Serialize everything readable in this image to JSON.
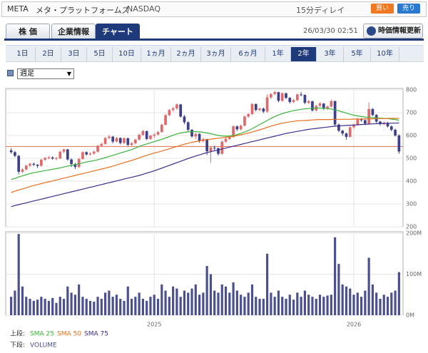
{
  "header": {
    "symbol": "META",
    "name": "メタ・プラットフォームズ",
    "exchange": "NASDAQ",
    "delay": "15分ディレイ",
    "buy": "買い",
    "sell": "売り",
    "timestamp": "26/03/30 02:51",
    "refresh": "時価情報更新"
  },
  "tabs": {
    "items": [
      "株 価",
      "企業情報",
      "チャート"
    ],
    "active": 2
  },
  "periods": {
    "items": [
      "1日",
      "2日",
      "3日",
      "5日",
      "10日",
      "1ヵ月",
      "2ヵ月",
      "3ヵ月",
      "6ヵ月",
      "1年",
      "2年",
      "3年",
      "5年",
      "10年"
    ],
    "active": 10
  },
  "interval": "週足",
  "chart_data": {
    "type": "candlestick",
    "up_color": "#e06a6a",
    "down_color": "#3c3f8a",
    "grid": true,
    "ylim": [
      200,
      800
    ],
    "yticks": [
      200,
      300,
      400,
      500,
      600,
      700,
      800
    ],
    "reference_line": 552,
    "reference_color": "#e07050",
    "xticks": [
      {
        "value": 38,
        "label": "2025"
      },
      {
        "value": 91,
        "label": "2026"
      }
    ],
    "candles": [
      [
        535,
        545,
        520,
        527
      ],
      [
        527,
        532,
        505,
        511
      ],
      [
        511,
        515,
        430,
        441
      ],
      [
        441,
        458,
        435,
        451
      ],
      [
        451,
        472,
        446,
        468
      ],
      [
        468,
        480,
        462,
        476
      ],
      [
        476,
        481,
        466,
        472
      ],
      [
        472,
        475,
        458,
        467
      ],
      [
        467,
        498,
        463,
        494
      ],
      [
        494,
        506,
        488,
        502
      ],
      [
        502,
        510,
        496,
        504
      ],
      [
        504,
        508,
        494,
        499
      ],
      [
        499,
        507,
        491,
        500
      ],
      [
        500,
        533,
        497,
        529
      ],
      [
        529,
        543,
        522,
        539
      ],
      [
        539,
        541,
        490,
        495
      ],
      [
        495,
        500,
        462,
        475
      ],
      [
        475,
        480,
        453,
        462
      ],
      [
        462,
        502,
        458,
        497
      ],
      [
        497,
        531,
        494,
        527
      ],
      [
        527,
        530,
        512,
        517
      ],
      [
        517,
        526,
        512,
        521
      ],
      [
        521,
        534,
        515,
        529
      ],
      [
        529,
        559,
        525,
        555
      ],
      [
        555,
        568,
        550,
        563
      ],
      [
        563,
        593,
        560,
        589
      ],
      [
        589,
        602,
        584,
        595
      ],
      [
        595,
        598,
        566,
        573
      ],
      [
        573,
        594,
        570,
        589
      ],
      [
        589,
        592,
        561,
        567
      ],
      [
        567,
        592,
        563,
        588
      ],
      [
        588,
        590,
        553,
        559
      ],
      [
        559,
        571,
        554,
        566
      ],
      [
        566,
        585,
        561,
        582
      ],
      [
        582,
        608,
        578,
        603
      ],
      [
        603,
        625,
        598,
        619
      ],
      [
        619,
        622,
        580,
        585
      ],
      [
        585,
        603,
        581,
        599
      ],
      [
        599,
        610,
        590,
        604
      ],
      [
        604,
        620,
        600,
        615
      ],
      [
        615,
        652,
        612,
        647
      ],
      [
        647,
        695,
        644,
        689
      ],
      [
        689,
        716,
        684,
        712
      ],
      [
        712,
        725,
        705,
        719
      ],
      [
        719,
        740,
        712,
        736
      ],
      [
        736,
        738,
        678,
        683
      ],
      [
        683,
        690,
        650,
        658
      ],
      [
        658,
        662,
        618,
        625
      ],
      [
        625,
        628,
        590,
        596
      ],
      [
        596,
        612,
        585,
        607
      ],
      [
        607,
        610,
        568,
        576
      ],
      [
        576,
        590,
        570,
        584
      ],
      [
        584,
        586,
        515,
        531
      ],
      [
        531,
        552,
        480,
        547
      ],
      [
        547,
        555,
        535,
        544
      ],
      [
        544,
        548,
        512,
        520
      ],
      [
        520,
        578,
        515,
        573
      ],
      [
        573,
        590,
        568,
        585
      ],
      [
        585,
        598,
        580,
        593
      ],
      [
        593,
        645,
        590,
        640
      ],
      [
        640,
        644,
        620,
        627
      ],
      [
        627,
        648,
        622,
        643
      ],
      [
        643,
        688,
        640,
        683
      ],
      [
        683,
        698,
        678,
        694
      ],
      [
        694,
        742,
        690,
        738
      ],
      [
        738,
        740,
        706,
        712
      ],
      [
        712,
        722,
        706,
        718
      ],
      [
        718,
        722,
        698,
        705
      ],
      [
        705,
        780,
        700,
        767
      ],
      [
        767,
        786,
        760,
        782
      ],
      [
        782,
        796,
        776,
        790
      ],
      [
        790,
        792,
        746,
        752
      ],
      [
        752,
        790,
        748,
        785
      ],
      [
        785,
        788,
        760,
        765
      ],
      [
        765,
        768,
        740,
        747
      ],
      [
        747,
        760,
        742,
        755
      ],
      [
        755,
        784,
        750,
        780
      ],
      [
        780,
        790,
        772,
        778
      ],
      [
        778,
        780,
        738,
        743
      ],
      [
        743,
        756,
        738,
        750
      ],
      [
        750,
        752,
        705,
        710
      ],
      [
        710,
        735,
        706,
        730
      ],
      [
        730,
        746,
        726,
        740
      ],
      [
        740,
        742,
        712,
        717
      ],
      [
        717,
        732,
        712,
        727
      ],
      [
        727,
        756,
        722,
        751
      ],
      [
        751,
        752,
        640,
        648
      ],
      [
        648,
        652,
        615,
        621
      ],
      [
        621,
        625,
        600,
        609
      ],
      [
        609,
        612,
        582,
        594
      ],
      [
        594,
        640,
        590,
        636
      ],
      [
        636,
        652,
        630,
        648
      ],
      [
        648,
        678,
        644,
        673
      ],
      [
        673,
        676,
        660,
        667
      ],
      [
        667,
        670,
        645,
        652
      ],
      [
        652,
        745,
        648,
        716
      ],
      [
        716,
        720,
        685,
        690
      ],
      [
        690,
        694,
        655,
        661
      ],
      [
        661,
        664,
        643,
        650
      ],
      [
        650,
        662,
        645,
        655
      ],
      [
        655,
        660,
        635,
        640
      ],
      [
        640,
        645,
        618,
        625
      ],
      [
        625,
        630,
        595,
        600
      ],
      [
        600,
        605,
        520,
        530
      ]
    ],
    "series": [
      {
        "name": "SMA 25",
        "color": "#3cb43c",
        "values": [
          407,
          412,
          418,
          423,
          428,
          433,
          437,
          440,
          443,
          446,
          449,
          452,
          455,
          458,
          462,
          466,
          469,
          472,
          476,
          480,
          484,
          487,
          490,
          494,
          498,
          503,
          508,
          513,
          518,
          523,
          528,
          533,
          538,
          545,
          552,
          558,
          563,
          568,
          573,
          578,
          583,
          589,
          595,
          601,
          607,
          611,
          614,
          616,
          617,
          617,
          616,
          614,
          611,
          608,
          604,
          600,
          598,
          597,
          598,
          600,
          604,
          609,
          615,
          622,
          630,
          639,
          648,
          657,
          666,
          675,
          683,
          690,
          696,
          701,
          705,
          709,
          712,
          715,
          717,
          718,
          719,
          720,
          720,
          719,
          718,
          716,
          712,
          708,
          703,
          698,
          693,
          689,
          686,
          683,
          681,
          679,
          678,
          677,
          676,
          675,
          674,
          672,
          670,
          667
        ]
      },
      {
        "name": "SMA 50",
        "color": "#e8701e",
        "values": [
          350,
          356,
          361,
          366,
          371,
          376,
          381,
          385,
          389,
          393,
          397,
          401,
          405,
          409,
          413,
          417,
          421,
          425,
          429,
          433,
          437,
          441,
          445,
          449,
          453,
          457,
          461,
          466,
          471,
          476,
          481,
          486,
          491,
          496,
          502,
          508,
          513,
          518,
          523,
          527,
          532,
          537,
          542,
          547,
          552,
          557,
          562,
          566,
          570,
          573,
          576,
          579,
          582,
          584,
          586,
          588,
          590,
          592,
          594,
          597,
          600,
          603,
          607,
          611,
          615,
          620,
          625,
          630,
          636,
          641,
          646,
          650,
          654,
          657,
          660,
          662,
          664,
          665,
          666,
          667,
          668,
          669,
          670,
          670,
          670,
          670,
          671,
          671,
          671,
          671,
          671,
          672,
          672,
          672,
          673,
          673,
          673,
          674,
          674,
          674,
          675,
          675,
          675,
          675
        ]
      },
      {
        "name": "SMA 75",
        "color": "#3a2e8c",
        "values": [
          288,
          293,
          297,
          301,
          305,
          309,
          313,
          317,
          321,
          325,
          329,
          333,
          337,
          341,
          345,
          349,
          353,
          357,
          361,
          365,
          369,
          373,
          377,
          381,
          385,
          389,
          393,
          397,
          401,
          405,
          409,
          413,
          417,
          421,
          425,
          430,
          435,
          440,
          445,
          451,
          457,
          463,
          469,
          475,
          481,
          487,
          493,
          499,
          505,
          510,
          515,
          520,
          525,
          529,
          533,
          537,
          541,
          545,
          549,
          553,
          557,
          561,
          565,
          569,
          573,
          577,
          581,
          585,
          589,
          593,
          597,
          601,
          605,
          609,
          612,
          615,
          618,
          621,
          624,
          627,
          629,
          631,
          633,
          635,
          637,
          639,
          641,
          642,
          643,
          644,
          645,
          646,
          647,
          648,
          649,
          650,
          651,
          652,
          652,
          653,
          653,
          654,
          654,
          655
        ]
      }
    ],
    "volume": {
      "name": "VOLUME",
      "color": "#4a4f8e",
      "ylim": [
        0,
        200
      ],
      "yticks": [
        {
          "value": 0,
          "label": "0M"
        },
        {
          "value": 100,
          "label": "100M"
        },
        {
          "value": 200,
          "label": "200M"
        }
      ],
      "values": [
        45,
        60,
        198,
        70,
        45,
        40,
        35,
        38,
        45,
        40,
        35,
        42,
        30,
        45,
        40,
        70,
        55,
        50,
        75,
        45,
        40,
        35,
        33,
        45,
        40,
        55,
        60,
        45,
        50,
        40,
        35,
        70,
        40,
        45,
        55,
        40,
        35,
        45,
        50,
        40,
        75,
        60,
        45,
        70,
        65,
        45,
        60,
        55,
        65,
        75,
        50,
        55,
        120,
        100,
        60,
        55,
        75,
        70,
        55,
        80,
        60,
        50,
        45,
        55,
        75,
        45,
        40,
        40,
        150,
        55,
        45,
        60,
        45,
        40,
        50,
        38,
        55,
        45,
        60,
        50,
        45,
        40,
        50,
        45,
        48,
        50,
        190,
        125,
        75,
        70,
        65,
        50,
        55,
        45,
        60,
        140,
        75,
        55,
        40,
        50,
        45,
        55,
        60,
        105
      ]
    },
    "legend_upper": "上段:",
    "legend_lower": "下段:"
  }
}
